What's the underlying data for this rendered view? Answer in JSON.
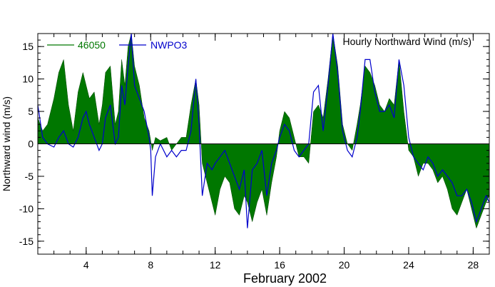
{
  "chart_data": {
    "type": "area",
    "title": "Hourly Northward Wind (m/s)",
    "xlabel": "February 2002",
    "ylabel": "Northward wind (m/s)",
    "xlim": [
      1,
      29
    ],
    "ylim": [
      -17,
      17
    ],
    "x_ticks": [
      4,
      8,
      12,
      16,
      20,
      24,
      28
    ],
    "y_ticks": [
      -15,
      -10,
      -5,
      0,
      5,
      10,
      15
    ],
    "legend_position": "top-left",
    "grid": false,
    "series": [
      {
        "name": "46050",
        "style": "filled-area",
        "color": "#007700",
        "x": [
          1.0,
          1.3,
          1.6,
          2.0,
          2.3,
          2.6,
          2.9,
          3.2,
          3.5,
          3.8,
          4.0,
          4.2,
          4.5,
          4.8,
          5.0,
          5.2,
          5.5,
          5.8,
          6.0,
          6.2,
          6.4,
          6.6,
          6.8,
          7.0,
          7.3,
          7.6,
          7.9,
          8.0,
          8.1,
          8.3,
          8.6,
          9.0,
          9.3,
          9.6,
          9.9,
          10.2,
          10.5,
          10.8,
          11.0,
          11.2,
          11.5,
          11.8,
          12.0,
          12.3,
          12.6,
          12.9,
          13.2,
          13.5,
          13.8,
          14.0,
          14.3,
          14.6,
          14.9,
          15.2,
          15.5,
          15.8,
          16.0,
          16.3,
          16.6,
          16.9,
          17.2,
          17.5,
          17.8,
          18.1,
          18.4,
          18.7,
          19.0,
          19.3,
          19.6,
          19.9,
          20.2,
          20.5,
          20.8,
          21.0,
          21.3,
          21.6,
          21.9,
          22.2,
          22.5,
          22.8,
          23.1,
          23.4,
          23.7,
          24.0,
          24.3,
          24.6,
          24.9,
          25.2,
          25.5,
          25.8,
          26.1,
          26.4,
          26.7,
          27.0,
          27.3,
          27.6,
          27.9,
          28.2,
          28.5,
          28.8,
          29.0
        ],
        "values": [
          4,
          2,
          3,
          7,
          11,
          13,
          6,
          2,
          8,
          11,
          9,
          7,
          8,
          3,
          6,
          11,
          12,
          3,
          5,
          13,
          9,
          15,
          18,
          12,
          9,
          4,
          2,
          0.5,
          -1,
          1,
          0.5,
          1,
          -1,
          0,
          1,
          1,
          6,
          10,
          6,
          -3,
          -6,
          -9,
          -11,
          -7,
          -5,
          -6,
          -10,
          -11,
          -8,
          -9,
          -12,
          -9,
          -7,
          -11,
          -6,
          -2,
          2,
          5,
          4,
          1,
          -2,
          -2,
          -3,
          5,
          6,
          4,
          10,
          17,
          12,
          3,
          0,
          -1,
          3,
          6,
          12,
          11,
          9,
          6,
          5,
          7,
          6,
          13,
          5,
          -1,
          -2,
          -5,
          -3,
          -3,
          -4,
          -6,
          -5,
          -7,
          -10,
          -11,
          -9,
          -7,
          -10,
          -13,
          -11,
          -9,
          -8
        ]
      },
      {
        "name": "NWPO3",
        "style": "line",
        "color": "#0000cc",
        "x": [
          1.0,
          1.3,
          1.6,
          2.0,
          2.3,
          2.6,
          2.9,
          3.2,
          3.5,
          3.8,
          4.0,
          4.2,
          4.5,
          4.8,
          5.0,
          5.2,
          5.5,
          5.8,
          6.0,
          6.2,
          6.4,
          6.6,
          6.8,
          7.0,
          7.3,
          7.6,
          7.9,
          8.0,
          8.1,
          8.3,
          8.6,
          9.0,
          9.3,
          9.6,
          9.9,
          10.2,
          10.5,
          10.8,
          11.0,
          11.2,
          11.5,
          11.8,
          12.0,
          12.3,
          12.6,
          12.9,
          13.2,
          13.5,
          13.8,
          14.0,
          14.3,
          14.6,
          14.9,
          15.2,
          15.5,
          15.8,
          16.0,
          16.3,
          16.6,
          16.9,
          17.2,
          17.5,
          17.8,
          18.1,
          18.4,
          18.7,
          19.0,
          19.3,
          19.6,
          19.9,
          20.2,
          20.5,
          20.8,
          21.0,
          21.3,
          21.6,
          21.9,
          22.2,
          22.5,
          22.8,
          23.1,
          23.4,
          23.7,
          24.0,
          24.3,
          24.6,
          24.9,
          25.2,
          25.5,
          25.8,
          26.1,
          26.4,
          26.7,
          27.0,
          27.3,
          27.6,
          27.9,
          28.2,
          28.5,
          28.8,
          29.0
        ],
        "values": [
          6,
          1,
          0,
          -0.5,
          1,
          2,
          0,
          -0.5,
          1,
          4,
          5,
          3,
          1,
          -1,
          0,
          4,
          6,
          0,
          1,
          9,
          6,
          12,
          21,
          9,
          7,
          5,
          1,
          -1,
          -8,
          -2,
          0,
          -2,
          -1,
          -2,
          -1,
          -1,
          2,
          10,
          3,
          -8,
          -3,
          -4,
          -3,
          -2,
          -1,
          -3,
          -5,
          -7,
          -4,
          -13,
          -4,
          -3,
          -1,
          -8,
          -3,
          -1,
          1,
          3,
          2,
          -1,
          -2,
          -1,
          0,
          8,
          9,
          2,
          9,
          21,
          11,
          2,
          -1,
          -2,
          1,
          5,
          13,
          13,
          8,
          5,
          5,
          6,
          4,
          13,
          9,
          1,
          -2,
          -3,
          -4,
          -2,
          -3,
          -5,
          -4,
          -5,
          -6,
          -8,
          -8,
          -7,
          -9,
          -12,
          -10,
          -8,
          -9
        ]
      }
    ]
  }
}
